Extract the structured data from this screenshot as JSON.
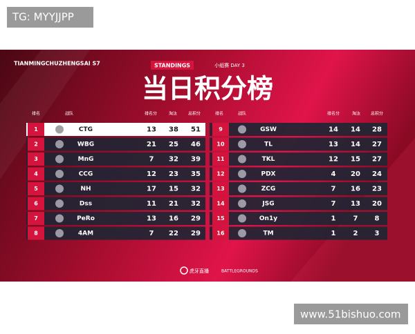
{
  "watermark_top": "TG: MYYJJPP",
  "watermark_bottom": "www.51bishuo.com",
  "header": {
    "event": "TIANMINGCHUZHENGSAI S7",
    "tab": "STANDINGS",
    "stage": "小组赛 DAY 3",
    "title": "当日积分榜"
  },
  "tables": [
    {
      "columns": [
        "排名",
        "战队",
        "排名分",
        "淘汰",
        "总积分"
      ],
      "rows": [
        [
          1,
          "CTG",
          13,
          38,
          51
        ],
        [
          2,
          "WBG",
          21,
          25,
          46
        ],
        [
          3,
          "MnG",
          7,
          32,
          39
        ],
        [
          4,
          "CCG",
          12,
          23,
          35
        ],
        [
          5,
          "NH",
          17,
          15,
          32
        ],
        [
          6,
          "Dss",
          11,
          21,
          32
        ],
        [
          7,
          "PeRo",
          13,
          16,
          29
        ],
        [
          8,
          "4AM",
          7,
          22,
          29
        ]
      ]
    },
    {
      "columns": [
        "排名",
        "战队",
        "排名分",
        "淘汰",
        "总积分"
      ],
      "rows": [
        [
          9,
          "GSW",
          14,
          14,
          28
        ],
        [
          10,
          "TL",
          13,
          14,
          27
        ],
        [
          11,
          "TKL",
          12,
          15,
          27
        ],
        [
          12,
          "PDX",
          4,
          20,
          24
        ],
        [
          13,
          "ZCG",
          7,
          16,
          23
        ],
        [
          14,
          "JSG",
          7,
          13,
          20
        ],
        [
          15,
          "On1y",
          1,
          7,
          8
        ],
        [
          16,
          "TM",
          1,
          2,
          3
        ]
      ]
    }
  ],
  "footer": {
    "brand": "虎牙直播",
    "game": "BATTLEGROUNDS"
  }
}
